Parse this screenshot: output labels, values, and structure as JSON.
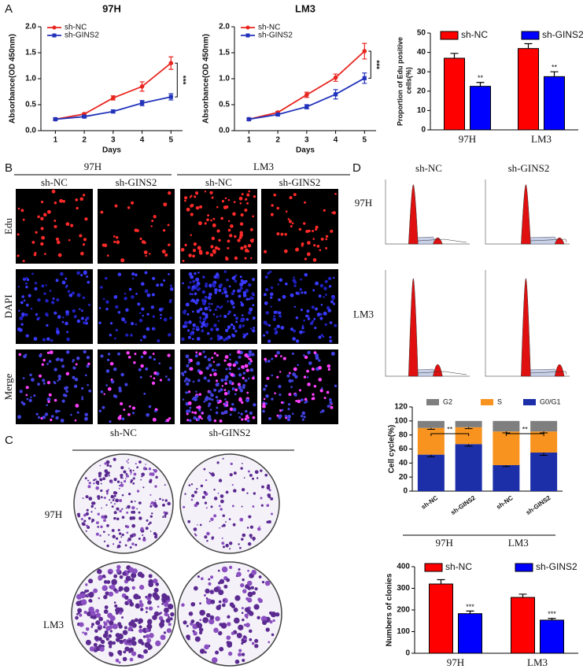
{
  "panel_labels": [
    "A",
    "B",
    "C",
    "D"
  ],
  "chart_data": [
    {
      "type": "line",
      "title": "97H",
      "xlabel": "Days",
      "ylabel": "Absorbance(OD 450nm)",
      "x": [
        1,
        2,
        3,
        4,
        5
      ],
      "xlim": [
        0.5,
        5.4
      ],
      "xticks": [
        1,
        2,
        3,
        4,
        5
      ],
      "ylim": [
        0,
        2
      ],
      "yticks": [
        {
          "value": 0,
          "label": "0.0"
        },
        0.5,
        {
          "value": 1,
          "label": "1.0"
        },
        1.5,
        {
          "value": 2,
          "label": "2.0"
        }
      ],
      "series": [
        {
          "name": "sh-NC",
          "color": "#e8251f",
          "values": [
            0.22,
            0.32,
            0.63,
            0.85,
            1.3
          ],
          "errors": [
            0.02,
            0.02,
            0.04,
            0.09,
            0.12
          ]
        },
        {
          "name": "sh-GINS2",
          "color": "#2233bb",
          "values": [
            0.22,
            0.27,
            0.37,
            0.53,
            0.65
          ],
          "errors": [
            0.02,
            0.02,
            0.03,
            0.05,
            0.06
          ]
        }
      ],
      "annotation": "***"
    },
    {
      "type": "line",
      "title": "LM3",
      "xlabel": "Days",
      "ylabel": "Absorbance(OD 450nm)",
      "x": [
        1,
        2,
        3,
        4,
        5
      ],
      "xlim": [
        0.5,
        5.4
      ],
      "xticks": [
        1,
        2,
        3,
        4,
        5
      ],
      "ylim": [
        0,
        2
      ],
      "yticks": [
        {
          "value": 0,
          "label": "0.0"
        },
        0.5,
        {
          "value": 1,
          "label": "1.0"
        },
        1.5,
        {
          "value": 2,
          "label": "2.0"
        }
      ],
      "series": [
        {
          "name": "sh-NC",
          "color": "#e8251f",
          "values": [
            0.22,
            0.35,
            0.69,
            1.02,
            1.53
          ],
          "errors": [
            0.02,
            0.02,
            0.05,
            0.07,
            0.15
          ]
        },
        {
          "name": "sh-GINS2",
          "color": "#2233bb",
          "values": [
            0.22,
            0.31,
            0.46,
            0.7,
            1.01
          ],
          "errors": [
            0.02,
            0.02,
            0.04,
            0.09,
            0.1
          ]
        }
      ],
      "annotation": "***"
    },
    {
      "type": "bar",
      "ylabel": "Proportion of Edu positive cells(%)",
      "categories": [
        "97H",
        "LM3"
      ],
      "ylim": [
        0,
        50
      ],
      "yticks": [
        0,
        10,
        20,
        30,
        40,
        50
      ],
      "series": [
        {
          "name": "sh-NC",
          "color": "#ff0000",
          "values": [
            37,
            42
          ],
          "errors": [
            2.5,
            2.5
          ]
        },
        {
          "name": "sh-GINS2",
          "color": "#0000ff",
          "values": [
            22.5,
            27.5
          ],
          "errors": [
            2,
            2.5
          ]
        }
      ],
      "annotations": [
        "**",
        "**"
      ]
    },
    {
      "type": "stacked_bar",
      "ylabel": "Cell cycle(%)",
      "categories": [
        "sh-NC",
        "sh-GINS2",
        "sh-NC",
        "sh-GINS2"
      ],
      "groups": [
        "97H",
        "LM3"
      ],
      "ylim": [
        0,
        120
      ],
      "yticks": [
        0,
        20,
        40,
        60,
        80,
        100,
        120
      ],
      "series": [
        {
          "name": "G0/G1",
          "color": "#1c2fa8",
          "values": [
            52,
            67,
            37,
            55
          ],
          "errors": [
            3,
            3,
            2,
            4
          ]
        },
        {
          "name": "S",
          "color": "#f7931e",
          "values": [
            38,
            24,
            48,
            30
          ],
          "errors": [
            2,
            2,
            2,
            2
          ]
        },
        {
          "name": "G2",
          "color": "#7f7f7f",
          "values": [
            10,
            9,
            15,
            15
          ]
        }
      ],
      "annotations": [
        "**",
        "**"
      ]
    },
    {
      "type": "bar",
      "ylabel": "Numbers of clonies",
      "categories": [
        "97H",
        "LM3"
      ],
      "ylim": [
        0,
        400
      ],
      "yticks": [
        0,
        100,
        200,
        300,
        400
      ],
      "series": [
        {
          "name": "sh-NC",
          "color": "#ff0000",
          "values": [
            320,
            258
          ],
          "errors": [
            20,
            15
          ]
        },
        {
          "name": "sh-GINS2",
          "color": "#0000ff",
          "values": [
            183,
            153
          ],
          "errors": [
            12,
            8
          ]
        }
      ],
      "annotations": [
        "***",
        "***"
      ]
    }
  ],
  "panel_b": {
    "groups": [
      "97H",
      "LM3"
    ],
    "columns": [
      "sh-NC",
      "sh-GINS2",
      "sh-NC",
      "sh-GINS2"
    ],
    "rows": [
      "Edu",
      "DAPI",
      "Merge"
    ]
  },
  "panel_c": {
    "columns": [
      "sh-NC",
      "sh-GINS2"
    ],
    "rows": [
      "97H",
      "LM3"
    ]
  },
  "panel_d": {
    "columns": [
      "sh-NC",
      "sh-GINS2"
    ],
    "rows": [
      "97H",
      "LM3"
    ]
  }
}
